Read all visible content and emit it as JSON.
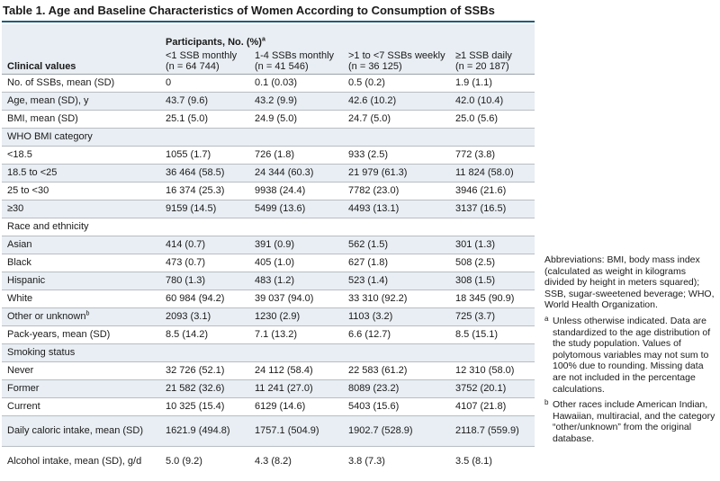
{
  "title": "Table 1. Age and Baseline Characteristics of Women According to Consumption of SSBs",
  "accent_color": "#1f5d7c",
  "header": {
    "group_label": "Participants, No. (%)",
    "group_sup": "a",
    "clinical_label": "Clinical values",
    "columns": [
      {
        "line1": "<1 SSB monthly",
        "line2": "(n = 64 744)"
      },
      {
        "line1": "1-4 SSBs monthly",
        "line2": "(n = 41 546)"
      },
      {
        "line1": ">1 to <7 SSBs weekly",
        "line2": "(n = 36 125)"
      },
      {
        "line1": "≥1 SSB daily",
        "line2": "(n = 20 187)"
      }
    ]
  },
  "rows": [
    {
      "label": "No. of SSBs, mean (SD)",
      "values": [
        "0",
        "0.1 (0.03)",
        "0.5 (0.2)",
        "1.9 (1.1)"
      ]
    },
    {
      "label": "Age, mean (SD), y",
      "values": [
        "43.7 (9.6)",
        "43.2 (9.9)",
        "42.6 (10.2)",
        "42.0 (10.4)"
      ]
    },
    {
      "label": "BMI, mean (SD)",
      "values": [
        "25.1 (5.0)",
        "24.9 (5.0)",
        "24.7 (5.0)",
        "25.0 (5.6)"
      ]
    },
    {
      "label": "WHO BMI category",
      "values": [
        "",
        "",
        "",
        ""
      ]
    },
    {
      "label": "<18.5",
      "values": [
        "1055 (1.7)",
        "726 (1.8)",
        "933 (2.5)",
        "772 (3.8)"
      ]
    },
    {
      "label": "18.5 to <25",
      "values": [
        "36 464 (58.5)",
        "24 344 (60.3)",
        "21 979 (61.3)",
        "11 824 (58.0)"
      ]
    },
    {
      "label": "25 to <30",
      "values": [
        "16 374 (25.3)",
        "9938 (24.4)",
        "7782 (23.0)",
        "3946 (21.6)"
      ]
    },
    {
      "label": "≥30",
      "values": [
        "9159 (14.5)",
        "5499 (13.6)",
        "4493 (13.1)",
        "3137 (16.5)"
      ]
    },
    {
      "label": "Race and ethnicity",
      "values": [
        "",
        "",
        "",
        ""
      ]
    },
    {
      "label": "Asian",
      "values": [
        "414 (0.7)",
        "391 (0.9)",
        "562 (1.5)",
        "301 (1.3)"
      ]
    },
    {
      "label": "Black",
      "values": [
        "473 (0.7)",
        "405 (1.0)",
        "627 (1.8)",
        "508 (2.5)"
      ]
    },
    {
      "label": "Hispanic",
      "values": [
        "780 (1.3)",
        "483 (1.2)",
        "523 (1.4)",
        "308 (1.5)"
      ]
    },
    {
      "label": "White",
      "values": [
        "60 984 (94.2)",
        "39 037 (94.0)",
        "33 310 (92.2)",
        "18 345 (90.9)"
      ]
    },
    {
      "label": "Other or unknown",
      "label_sup": "b",
      "values": [
        "2093 (3.1)",
        "1230 (2.9)",
        "1103 (3.2)",
        "725 (3.7)"
      ]
    },
    {
      "label": "Pack-years, mean (SD)",
      "values": [
        "8.5 (14.2)",
        "7.1 (13.2)",
        "6.6 (12.7)",
        "8.5 (15.1)"
      ]
    },
    {
      "label": "Smoking status",
      "values": [
        "",
        "",
        "",
        ""
      ]
    },
    {
      "label": "Never",
      "values": [
        "32 726 (52.1)",
        "24 112 (58.4)",
        "22 583 (61.2)",
        "12 310 (58.0)"
      ]
    },
    {
      "label": "Former",
      "values": [
        "21 582 (32.6)",
        "11 241 (27.0)",
        "8089 (23.2)",
        "3752 (20.1)"
      ]
    },
    {
      "label": "Current",
      "values": [
        "10 325 (15.4)",
        "6129 (14.6)",
        "5403 (15.6)",
        "4107 (21.8)"
      ]
    },
    {
      "label": "Daily caloric intake, mean (SD)",
      "values": [
        "1621.9 (494.8)",
        "1757.1 (504.9)",
        "1902.7 (528.9)",
        "2118.7 (559.9)"
      ]
    },
    {
      "label": "Alcohol intake, mean (SD), g/d",
      "values": [
        "5.0 (9.2)",
        "4.3 (8.2)",
        "3.8 (7.3)",
        "3.5 (8.1)"
      ]
    }
  ],
  "notes": {
    "abbreviations": "Abbreviations: BMI, body mass index (calculated as weight in kilograms divided by height in meters squared); SSB, sugar-sweetened beverage; WHO, World Health Organization.",
    "footnote_a_marker": "a",
    "footnote_a": "Unless otherwise indicated. Data are standardized to the age distribution of the study population. Values of polytomous variables may not sum to 100% due to rounding. Missing data are not included in the percentage calculations.",
    "footnote_b_marker": "b",
    "footnote_b": "Other races include American Indian, Hawaiian, multiracial, and the category “other/unknown” from the original database."
  }
}
